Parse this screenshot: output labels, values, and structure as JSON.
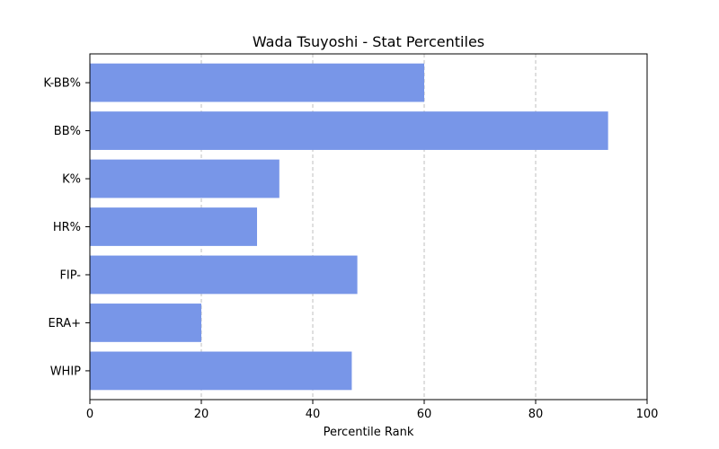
{
  "chart_data": {
    "type": "bar",
    "orientation": "horizontal",
    "title": "Wada Tsuyoshi - Stat Percentiles",
    "xlabel": "Percentile Rank",
    "ylabel": "",
    "xlim": [
      0,
      100
    ],
    "x_ticks": [
      0,
      20,
      40,
      60,
      80,
      100
    ],
    "grid": "x-axis, dashed",
    "legend": "none",
    "bar_color": "#7896E8",
    "categories": [
      "K-BB%",
      "BB%",
      "K%",
      "HR%",
      "FIP-",
      "ERA+",
      "WHIP"
    ],
    "values": [
      60,
      93,
      34,
      30,
      48,
      20,
      47
    ]
  }
}
